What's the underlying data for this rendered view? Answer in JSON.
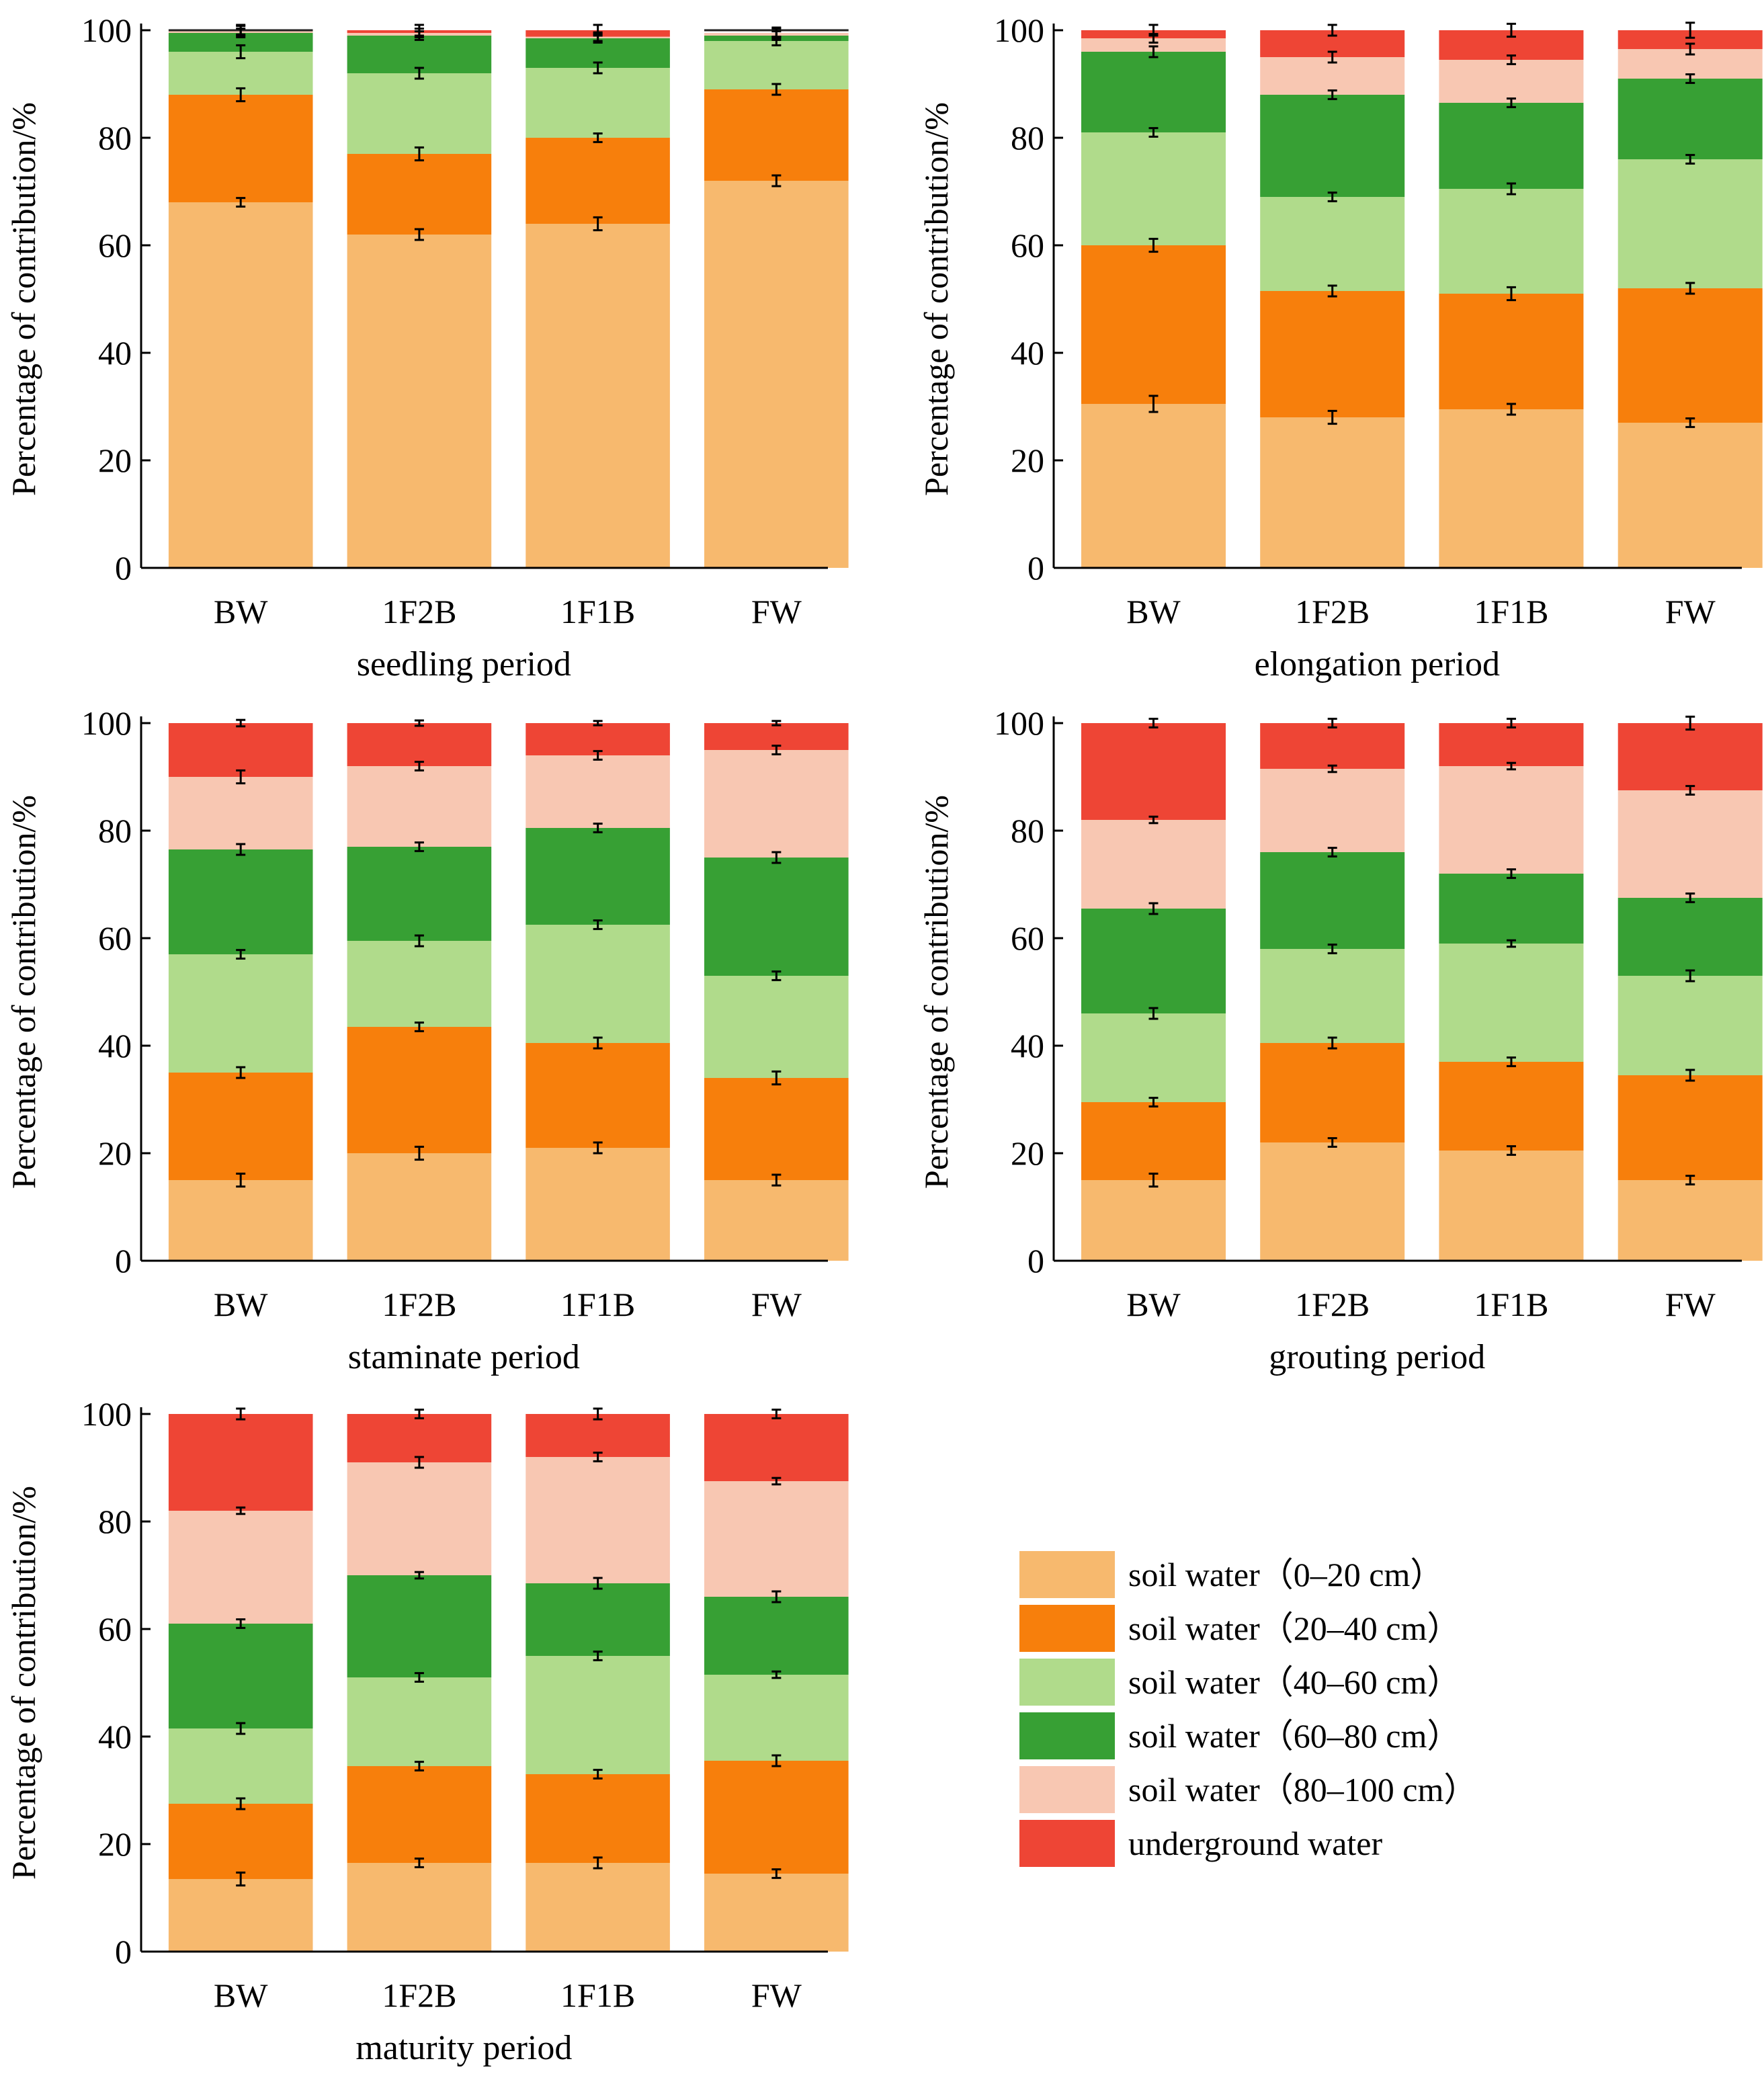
{
  "figure": {
    "colors": [
      "#f7b96e",
      "#f77f0c",
      "#b0db8b",
      "#37a034",
      "#f8c7b2",
      "#ee4535"
    ],
    "ylabel": "Percentage of contribution/%",
    "yticks": [
      "0",
      "20",
      "40",
      "60",
      "80",
      "100"
    ]
  },
  "legend": {
    "items": [
      "soil water（0–20 cm）",
      "soil water（20–40 cm）",
      "soil water（40–60 cm）",
      "soil water（60–80 cm）",
      "soil water（80–100 cm）",
      "underground water"
    ]
  },
  "chart_data": [
    {
      "type": "bar",
      "stacked": true,
      "title": "seedling period",
      "xlabel": "seedling period",
      "ylabel": "Percentage of contribution/%",
      "ylim": [
        0,
        100
      ],
      "categories": [
        "BW",
        "1F2B",
        "1F1B",
        "FW"
      ],
      "series": [
        {
          "name": "soil water（0–20 cm）",
          "values": [
            68,
            62,
            64,
            72
          ],
          "errors": [
            0.8,
            1.0,
            1.2,
            1.0
          ]
        },
        {
          "name": "soil water（20–40 cm）",
          "values": [
            20,
            15,
            16,
            17
          ],
          "errors": [
            1.2,
            1.2,
            0.8,
            1.0
          ]
        },
        {
          "name": "soil water（40–60 cm）",
          "values": [
            8,
            15,
            13,
            9
          ],
          "errors": [
            1.2,
            1.0,
            1.0,
            0.8
          ]
        },
        {
          "name": "soil water（60–80 cm）",
          "values": [
            3.5,
            7,
            5.5,
            1
          ],
          "errors": [
            0.8,
            0.8,
            0.8,
            0.8
          ]
        },
        {
          "name": "soil water（80–100 cm）",
          "values": [
            0.5,
            0.5,
            0.3,
            0.5
          ],
          "errors": [
            0.8,
            0.8,
            0.8,
            0.8
          ]
        },
        {
          "name": "underground water",
          "values": [
            0,
            0.5,
            1.2,
            0
          ],
          "errors": [
            1.0,
            1.0,
            1.0,
            1.0
          ]
        }
      ]
    },
    {
      "type": "bar",
      "stacked": true,
      "title": "elongation period",
      "xlabel": "elongation period",
      "ylabel": "Percentage of contribution/%",
      "ylim": [
        0,
        100
      ],
      "categories": [
        "BW",
        "1F2B",
        "1F1B",
        "FW"
      ],
      "series": [
        {
          "name": "soil water（0–20 cm）",
          "values": [
            30.5,
            28,
            29.5,
            27
          ],
          "errors": [
            1.5,
            1.2,
            1.0,
            0.8
          ]
        },
        {
          "name": "soil water（20–40 cm）",
          "values": [
            29.5,
            23.5,
            21.5,
            25
          ],
          "errors": [
            1.2,
            1.0,
            1.2,
            1.0
          ]
        },
        {
          "name": "soil water（40–60 cm）",
          "values": [
            21,
            17.5,
            19.5,
            24
          ],
          "errors": [
            0.8,
            0.8,
            1.0,
            0.8
          ]
        },
        {
          "name": "soil water（60–80 cm）",
          "values": [
            15,
            19,
            16,
            15
          ],
          "errors": [
            1.0,
            0.8,
            0.8,
            0.8
          ]
        },
        {
          "name": "soil water（80–100 cm）",
          "values": [
            2.5,
            7,
            8,
            5.5
          ],
          "errors": [
            0.8,
            1.0,
            0.8,
            1.0
          ]
        },
        {
          "name": "underground water",
          "values": [
            1.5,
            5,
            5.5,
            3.5
          ],
          "errors": [
            1.0,
            1.0,
            1.2,
            1.4
          ]
        }
      ]
    },
    {
      "type": "bar",
      "stacked": true,
      "title": "staminate period",
      "xlabel": "staminate period",
      "ylabel": "Percentage of contribution/%",
      "ylim": [
        0,
        100
      ],
      "categories": [
        "BW",
        "1F2B",
        "1F1B",
        "FW"
      ],
      "series": [
        {
          "name": "soil water（0–20 cm）",
          "values": [
            15,
            20,
            21,
            15
          ],
          "errors": [
            1.2,
            1.2,
            1.0,
            1.0
          ]
        },
        {
          "name": "soil water（20–40 cm）",
          "values": [
            20,
            23.5,
            19.5,
            19
          ],
          "errors": [
            1.0,
            0.8,
            1.0,
            1.2
          ]
        },
        {
          "name": "soil water（40–60 cm）",
          "values": [
            22,
            16,
            22,
            19
          ],
          "errors": [
            0.8,
            1.0,
            0.8,
            0.8
          ]
        },
        {
          "name": "soil water（60–80 cm）",
          "values": [
            19.5,
            17.5,
            18,
            22
          ],
          "errors": [
            1.0,
            0.8,
            0.8,
            1.0
          ]
        },
        {
          "name": "soil water（80–100 cm）",
          "values": [
            13.5,
            15,
            13.5,
            20
          ],
          "errors": [
            1.2,
            0.8,
            0.8,
            0.8
          ]
        },
        {
          "name": "underground water",
          "values": [
            10,
            8,
            6,
            5
          ],
          "errors": [
            0.6,
            0.5,
            0.4,
            0.4
          ]
        }
      ]
    },
    {
      "type": "bar",
      "stacked": true,
      "title": "grouting period",
      "xlabel": "grouting period",
      "ylabel": "Percentage of contribution/%",
      "ylim": [
        0,
        100
      ],
      "categories": [
        "BW",
        "1F2B",
        "1F1B",
        "FW"
      ],
      "series": [
        {
          "name": "soil water（0–20 cm）",
          "values": [
            15,
            22,
            20.5,
            15
          ],
          "errors": [
            1.2,
            0.8,
            0.8,
            0.8
          ]
        },
        {
          "name": "soil water（20–40 cm）",
          "values": [
            14.5,
            18.5,
            16.5,
            19.5
          ],
          "errors": [
            0.8,
            1.0,
            0.8,
            1.0
          ]
        },
        {
          "name": "soil water（40–60 cm）",
          "values": [
            16.5,
            17.5,
            22,
            18.5
          ],
          "errors": [
            1.0,
            0.8,
            0.6,
            1.0
          ]
        },
        {
          "name": "soil water（60–80 cm）",
          "values": [
            19.5,
            18,
            13,
            14.5
          ],
          "errors": [
            1.0,
            0.8,
            0.8,
            0.8
          ]
        },
        {
          "name": "soil water（80–100 cm）",
          "values": [
            16.5,
            15.5,
            20,
            20
          ],
          "errors": [
            0.6,
            0.6,
            0.6,
            0.8
          ]
        },
        {
          "name": "underground water",
          "values": [
            18,
            8.5,
            8,
            12.5
          ],
          "errors": [
            0.8,
            0.8,
            0.8,
            1.2
          ]
        }
      ]
    },
    {
      "type": "bar",
      "stacked": true,
      "title": "maturity period",
      "xlabel": "maturity period",
      "ylabel": "Percentage of contribution/%",
      "ylim": [
        0,
        100
      ],
      "categories": [
        "BW",
        "1F2B",
        "1F1B",
        "FW"
      ],
      "series": [
        {
          "name": "soil water（0–20 cm）",
          "values": [
            13.5,
            16.5,
            16.5,
            14.5
          ],
          "errors": [
            1.2,
            0.8,
            1.0,
            0.8
          ]
        },
        {
          "name": "soil water（20–40 cm）",
          "values": [
            14,
            18,
            16.5,
            21
          ],
          "errors": [
            1.0,
            0.8,
            0.8,
            1.0
          ]
        },
        {
          "name": "soil water（40–60 cm）",
          "values": [
            14,
            16.5,
            22,
            16
          ],
          "errors": [
            1.0,
            0.8,
            0.8,
            0.6
          ]
        },
        {
          "name": "soil water（60–80 cm）",
          "values": [
            19.5,
            19,
            13.5,
            14.5
          ],
          "errors": [
            0.8,
            0.6,
            1.0,
            1.0
          ]
        },
        {
          "name": "soil water（80–100 cm）",
          "values": [
            21,
            21,
            23.5,
            21.5
          ],
          "errors": [
            0.6,
            1.0,
            0.8,
            0.6
          ]
        },
        {
          "name": "underground water",
          "values": [
            18,
            9,
            8,
            12.5
          ],
          "errors": [
            1.0,
            0.8,
            1.0,
            0.8
          ]
        }
      ]
    }
  ]
}
